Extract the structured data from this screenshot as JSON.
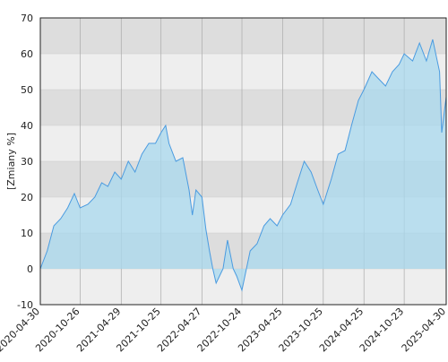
{
  "chart_data": {
    "type": "area",
    "y_label": "[Zmiany %]",
    "x": [
      "2020-04-30",
      "2020-05-31",
      "2020-06-30",
      "2020-07-31",
      "2020-08-31",
      "2020-09-30",
      "2020-10-26",
      "2020-11-30",
      "2020-12-31",
      "2021-01-31",
      "2021-02-28",
      "2021-03-31",
      "2021-04-29",
      "2021-05-31",
      "2021-06-30",
      "2021-07-31",
      "2021-08-31",
      "2021-09-30",
      "2021-10-25",
      "2021-11-15",
      "2021-11-30",
      "2021-12-31",
      "2022-01-31",
      "2022-02-28",
      "2022-03-15",
      "2022-03-31",
      "2022-04-27",
      "2022-05-15",
      "2022-05-31",
      "2022-06-15",
      "2022-06-30",
      "2022-07-31",
      "2022-08-20",
      "2022-09-15",
      "2022-09-30",
      "2022-10-24",
      "2022-11-30",
      "2022-12-31",
      "2023-01-31",
      "2023-02-28",
      "2023-03-31",
      "2023-04-25",
      "2023-05-31",
      "2023-06-30",
      "2023-07-31",
      "2023-08-31",
      "2023-09-30",
      "2023-10-25",
      "2023-11-30",
      "2023-12-31",
      "2024-01-31",
      "2024-02-29",
      "2024-03-31",
      "2024-04-25",
      "2024-05-31",
      "2024-06-30",
      "2024-07-31",
      "2024-08-31",
      "2024-09-30",
      "2024-10-23",
      "2024-11-30",
      "2024-12-31",
      "2025-01-31",
      "2025-02-28",
      "2025-03-31",
      "2025-04-10",
      "2025-04-30"
    ],
    "values": [
      0,
      5,
      12,
      14,
      17,
      21,
      17,
      18,
      20,
      24,
      23,
      27,
      25,
      30,
      27,
      32,
      35,
      35,
      38,
      40,
      35,
      30,
      31,
      22,
      15,
      22,
      20,
      11,
      5,
      0,
      -4,
      0,
      8,
      0,
      -2,
      -6,
      5,
      7,
      12,
      14,
      12,
      15,
      18,
      24,
      30,
      27,
      22,
      18,
      25,
      32,
      33,
      40,
      47,
      50,
      55,
      53,
      51,
      55,
      57,
      60,
      58,
      63,
      58,
      64,
      55,
      38,
      48
    ],
    "color": "#4a9be0",
    "fill_color": "#a8d8ee",
    "band_colors": [
      "#dddddd",
      "#eeeeee"
    ],
    "xlim": [
      "2020-04-30",
      "2025-04-30"
    ],
    "xticks": [
      "2020-04-30",
      "2020-10-26",
      "2021-04-29",
      "2021-10-25",
      "2022-04-27",
      "2022-10-24",
      "2023-04-25",
      "2023-10-25",
      "2024-04-25",
      "2024-10-23",
      "2025-04-30"
    ],
    "ylim": [
      -10,
      70
    ],
    "yticks": [
      -10,
      0,
      10,
      20,
      30,
      40,
      50,
      60,
      70
    ],
    "grid": true
  }
}
